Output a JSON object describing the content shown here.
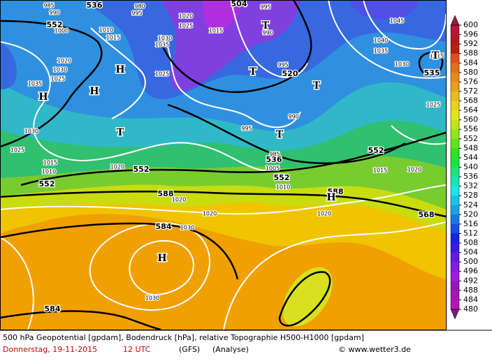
{
  "map": {
    "contour_labels": [
      "536",
      "504",
      "995",
      "552",
      "1045",
      "1040",
      "1035",
      "1030",
      "535",
      "520",
      "995",
      "990",
      "995",
      "536",
      "552",
      "552",
      "552",
      "552",
      "1020",
      "1030",
      "1025",
      "1015",
      "1010",
      "1015",
      "1020",
      "588",
      "588",
      "1020",
      "1020",
      "1020",
      "568",
      "584",
      "1030",
      "1030",
      "584",
      "1025",
      "1035",
      "1020",
      "1030",
      "1010",
      "1015",
      "1020",
      "1025",
      "1015",
      "1030",
      "1035",
      "1025",
      "985",
      "990",
      "1000",
      "980",
      "995",
      "990",
      "1015",
      "1025",
      "1005",
      "1010",
      "985"
    ],
    "pressure_centers": [
      "H",
      "H",
      "H",
      "T",
      "T",
      "T",
      "T",
      "T",
      "T",
      "H",
      "H"
    ]
  },
  "colorbar": {
    "levels": [
      600,
      596,
      592,
      588,
      584,
      580,
      576,
      572,
      568,
      564,
      560,
      556,
      552,
      548,
      544,
      540,
      536,
      532,
      528,
      524,
      520,
      516,
      512,
      508,
      504,
      500,
      496,
      492,
      488,
      484,
      480
    ]
  },
  "caption": {
    "description": "500 hPa Geopotential [gpdam], Bodendruck [hPa], relative Topographie H500-H1000 [gpdam]",
    "date": "Donnerstag, 19-11-2015",
    "time": "12 UTC",
    "model": "(GFS)",
    "run": "(Analyse)",
    "copyright": "© www.wetter3.de"
  }
}
